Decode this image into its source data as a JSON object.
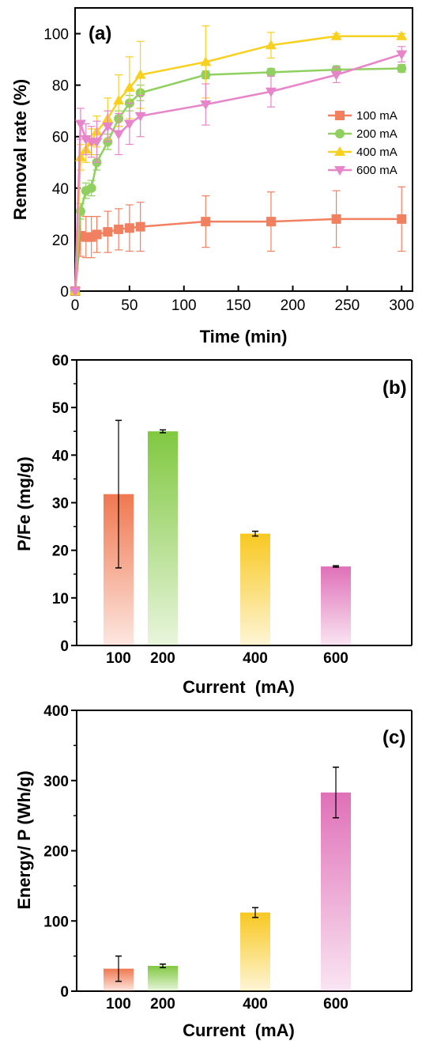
{
  "chart_data": [
    {
      "type": "line",
      "panel_label": "(a)",
      "xlabel": "Time (min)",
      "ylabel": "Removal rate (%)",
      "xlim": [
        0,
        310
      ],
      "ylim": [
        0,
        110
      ],
      "xticks": [
        0,
        50,
        100,
        150,
        200,
        250,
        300
      ],
      "yticks": [
        0,
        20,
        40,
        60,
        80,
        100
      ],
      "legend_position": "right-middle",
      "x": [
        0,
        5,
        10,
        15,
        20,
        30,
        40,
        50,
        60,
        120,
        180,
        240,
        300
      ],
      "series": [
        {
          "name": "100 mA",
          "color": "#f08060",
          "marker": "square",
          "values": [
            0,
            21.5,
            21,
            21,
            22,
            23,
            24,
            24.5,
            25,
            27,
            27,
            28,
            28
          ],
          "errors": [
            0,
            8,
            8,
            8,
            7,
            8,
            8,
            9,
            9.5,
            10,
            11.5,
            11,
            12.5
          ]
        },
        {
          "name": "200 mA",
          "color": "#90d060",
          "marker": "circle",
          "values": [
            0,
            31,
            39,
            40,
            50,
            58,
            67,
            73,
            77,
            84,
            85,
            86,
            86.5
          ],
          "errors": [
            0,
            3,
            3,
            3,
            3,
            3,
            3,
            3,
            3,
            1.5,
            1.5,
            1.5,
            1.5
          ]
        },
        {
          "name": "400 mA",
          "color": "#f8d020",
          "marker": "triangle-up",
          "values": [
            0,
            52,
            55,
            58,
            62,
            67,
            74,
            79,
            84,
            89,
            95.5,
            99,
            99
          ],
          "errors": [
            0,
            5,
            5,
            5,
            6,
            8,
            10,
            12,
            13,
            14,
            5,
            1,
            1
          ]
        },
        {
          "name": "600 mA",
          "color": "#e884c8",
          "marker": "triangle-down",
          "values": [
            0,
            65,
            59,
            58,
            58,
            64,
            61,
            65,
            68,
            72.5,
            77.5,
            84,
            92
          ],
          "errors": [
            0,
            6,
            6,
            6,
            8,
            6,
            8,
            8,
            8,
            8,
            6,
            3,
            3
          ]
        }
      ]
    },
    {
      "type": "bar",
      "panel_label": "(b)",
      "xlabel": "Current  (mA)",
      "ylabel": "P/Fe (mg/g)",
      "ylim": [
        0,
        60
      ],
      "yticks": [
        0,
        10,
        20,
        30,
        40,
        50,
        60
      ],
      "categories": [
        "100",
        "200",
        "400",
        "600"
      ],
      "values": [
        31.8,
        45,
        23.5,
        16.6
      ],
      "errors": [
        15.5,
        0.3,
        0.5,
        0.15
      ],
      "colors": [
        "#f07850",
        "#80c840",
        "#f8c820",
        "#e070b8"
      ]
    },
    {
      "type": "bar",
      "panel_label": "(c)",
      "xlabel": "Current  (mA)",
      "ylabel": "Energy/ P (Wh/g)",
      "ylim": [
        0,
        400
      ],
      "yticks": [
        0,
        100,
        200,
        300,
        400
      ],
      "categories": [
        "100",
        "200",
        "400",
        "600"
      ],
      "values": [
        32,
        36,
        112,
        283
      ],
      "errors": [
        18,
        2.5,
        7,
        36
      ],
      "colors": [
        "#f07850",
        "#80c840",
        "#f8c820",
        "#e070b8"
      ]
    }
  ]
}
